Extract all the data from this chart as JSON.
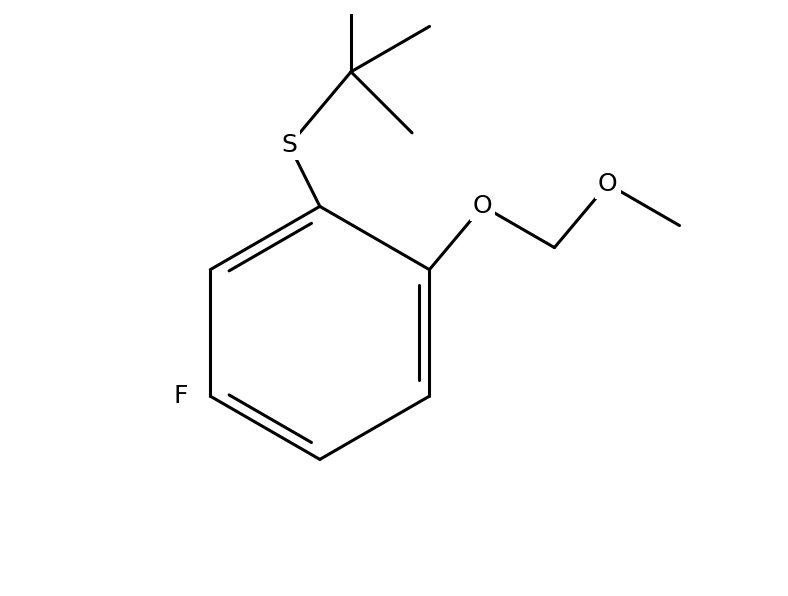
{
  "background_color": "#ffffff",
  "line_color": "#000000",
  "line_width": 2.2,
  "font_size": 18,
  "label_F": "F",
  "label_S": "S",
  "label_O1": "O",
  "label_O2": "O",
  "figsize": [
    7.88,
    5.96
  ],
  "dpi": 100,
  "xlim": [
    -0.5,
    8.5
  ],
  "ylim": [
    -0.3,
    6.2
  ]
}
